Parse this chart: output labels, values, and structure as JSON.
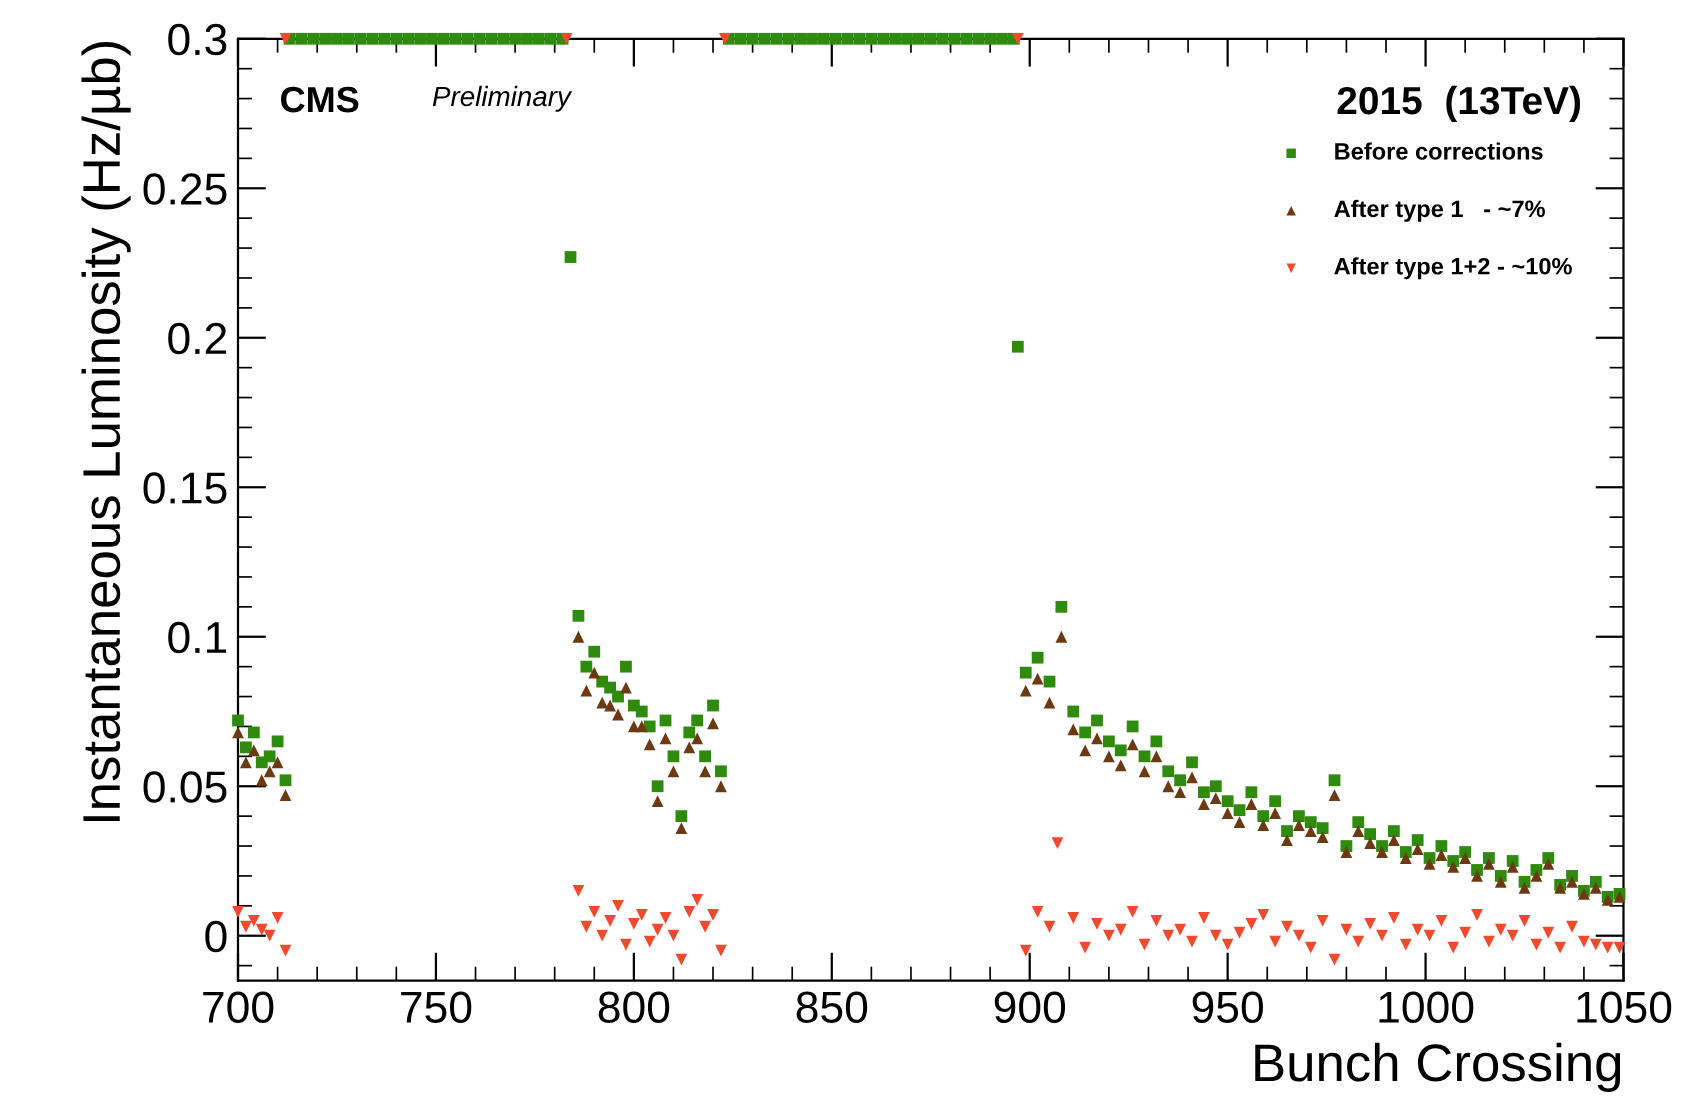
{
  "chart_data": {
    "type": "scatter",
    "xlabel": "Bunch Crossing",
    "ylabel": "Instantaneous Luminosity (Hz/µb)",
    "xlim": [
      700,
      1050
    ],
    "ylim": [
      -0.015,
      0.3
    ],
    "xticks": [
      700,
      750,
      800,
      850,
      900,
      950,
      1000,
      1050
    ],
    "yticks": [
      0,
      0.05,
      0.1,
      0.15,
      0.2,
      0.25,
      0.3
    ],
    "grid": false,
    "legend": "top right",
    "annotations": [
      "CMS",
      "Preliminary",
      "2015  (13TeV)"
    ],
    "series": [
      {
        "name": "Before corrections",
        "color": "#2e8b0e",
        "marker": "square",
        "x": [
          700,
          702,
          704,
          706,
          708,
          710,
          712,
          784,
          786,
          788,
          790,
          792,
          794,
          796,
          798,
          800,
          802,
          804,
          806,
          808,
          810,
          812,
          814,
          816,
          818,
          820,
          822,
          897,
          899,
          902,
          905,
          908,
          911,
          914,
          917,
          920,
          923,
          926,
          929,
          932,
          935,
          938,
          941,
          944,
          947,
          950,
          953,
          956,
          959,
          962,
          965,
          968,
          971,
          974,
          977,
          980,
          983,
          986,
          989,
          992,
          995,
          998,
          1001,
          1004,
          1007,
          1010,
          1013,
          1016,
          1019,
          1022,
          1025,
          1028,
          1031,
          1034,
          1037,
          1040,
          1043,
          1046,
          1049
        ],
        "values": [
          0.072,
          0.063,
          0.068,
          0.058,
          0.06,
          0.065,
          0.052,
          0.227,
          0.107,
          0.09,
          0.095,
          0.085,
          0.083,
          0.08,
          0.09,
          0.077,
          0.075,
          0.07,
          0.05,
          0.072,
          0.06,
          0.04,
          0.068,
          0.072,
          0.06,
          0.077,
          0.055,
          0.197,
          0.088,
          0.093,
          0.085,
          0.11,
          0.075,
          0.068,
          0.072,
          0.065,
          0.062,
          0.07,
          0.06,
          0.065,
          0.055,
          0.052,
          0.058,
          0.048,
          0.05,
          0.045,
          0.042,
          0.048,
          0.04,
          0.045,
          0.035,
          0.04,
          0.038,
          0.036,
          0.052,
          0.03,
          0.038,
          0.034,
          0.03,
          0.035,
          0.028,
          0.032,
          0.026,
          0.03,
          0.025,
          0.028,
          0.022,
          0.026,
          0.02,
          0.025,
          0.018,
          0.022,
          0.026,
          0.017,
          0.02,
          0.015,
          0.018,
          0.013,
          0.014
        ]
      },
      {
        "name": "After type 1   - ~7%",
        "color": "#6b3a12",
        "marker": "triangle",
        "x": [
          700,
          702,
          704,
          706,
          708,
          710,
          712,
          786,
          788,
          790,
          792,
          794,
          796,
          798,
          800,
          802,
          804,
          806,
          808,
          810,
          812,
          814,
          816,
          818,
          820,
          822,
          899,
          902,
          905,
          908,
          911,
          914,
          917,
          920,
          923,
          926,
          929,
          932,
          935,
          938,
          941,
          944,
          947,
          950,
          953,
          956,
          959,
          962,
          965,
          968,
          971,
          974,
          977,
          980,
          983,
          986,
          989,
          992,
          995,
          998,
          1001,
          1004,
          1007,
          1010,
          1013,
          1016,
          1019,
          1022,
          1025,
          1028,
          1031,
          1034,
          1037,
          1040,
          1043,
          1046,
          1049
        ],
        "values": [
          0.068,
          0.058,
          0.062,
          0.052,
          0.055,
          0.058,
          0.047,
          0.1,
          0.082,
          0.088,
          0.078,
          0.077,
          0.074,
          0.083,
          0.07,
          0.07,
          0.064,
          0.045,
          0.066,
          0.055,
          0.036,
          0.063,
          0.066,
          0.055,
          0.071,
          0.05,
          0.082,
          0.086,
          0.078,
          0.1,
          0.069,
          0.062,
          0.066,
          0.06,
          0.057,
          0.064,
          0.055,
          0.06,
          0.05,
          0.048,
          0.053,
          0.044,
          0.046,
          0.041,
          0.038,
          0.044,
          0.037,
          0.041,
          0.032,
          0.037,
          0.035,
          0.033,
          0.047,
          0.028,
          0.035,
          0.031,
          0.028,
          0.032,
          0.026,
          0.029,
          0.024,
          0.027,
          0.023,
          0.026,
          0.02,
          0.024,
          0.018,
          0.023,
          0.016,
          0.02,
          0.024,
          0.016,
          0.018,
          0.014,
          0.016,
          0.012,
          0.013
        ]
      },
      {
        "name": "After type 1+2 - ~10%",
        "color": "#f04a2e",
        "marker": "triangle_down",
        "x": [
          700,
          702,
          704,
          706,
          708,
          710,
          712,
          786,
          788,
          790,
          792,
          794,
          796,
          798,
          800,
          802,
          804,
          806,
          808,
          810,
          812,
          814,
          816,
          818,
          820,
          822,
          899,
          902,
          905,
          907,
          911,
          914,
          917,
          920,
          923,
          926,
          929,
          932,
          935,
          938,
          941,
          944,
          947,
          950,
          953,
          956,
          959,
          962,
          965,
          968,
          971,
          974,
          977,
          980,
          983,
          986,
          989,
          992,
          995,
          998,
          1001,
          1004,
          1007,
          1010,
          1013,
          1016,
          1019,
          1022,
          1025,
          1028,
          1031,
          1034,
          1037,
          1040,
          1043,
          1046,
          1049
        ],
        "values": [
          0.008,
          0.003,
          0.005,
          0.002,
          0.0,
          0.006,
          -0.005,
          0.015,
          0.003,
          0.008,
          0.0,
          0.005,
          0.01,
          -0.003,
          0.004,
          0.007,
          -0.002,
          0.002,
          0.006,
          0.0,
          -0.008,
          0.008,
          0.012,
          0.003,
          0.007,
          -0.005,
          -0.005,
          0.008,
          0.003,
          0.031,
          0.006,
          -0.004,
          0.004,
          0.0,
          0.002,
          0.008,
          -0.003,
          0.005,
          0.0,
          0.002,
          -0.002,
          0.006,
          0.0,
          -0.003,
          0.001,
          0.004,
          0.007,
          -0.002,
          0.003,
          0.0,
          -0.004,
          0.005,
          -0.008,
          0.002,
          -0.002,
          0.004,
          0.0,
          0.006,
          -0.003,
          0.002,
          0.0,
          0.005,
          -0.004,
          0.001,
          0.007,
          -0.002,
          0.002,
          0.0,
          0.005,
          -0.003,
          0.001,
          -0.004,
          0.003,
          -0.002,
          -0.003,
          -0.004,
          -0.004
        ]
      },
      {
        "color": "#2e8b0e",
        "marker": "square",
        "x": [
          713,
          716,
          719,
          722,
          725,
          728,
          731,
          734,
          737,
          740,
          743,
          746,
          749,
          752,
          755,
          758,
          761,
          764,
          767,
          770,
          773,
          776,
          779,
          782,
          824,
          827,
          830,
          833,
          836,
          839,
          842,
          845,
          848,
          851,
          854,
          857,
          860,
          863,
          866,
          869,
          872,
          875,
          878,
          881,
          884,
          887,
          890,
          893,
          896
        ],
        "values": [
          0.3,
          0.3,
          0.3,
          0.3,
          0.3,
          0.3,
          0.3,
          0.3,
          0.3,
          0.3,
          0.3,
          0.3,
          0.3,
          0.3,
          0.3,
          0.3,
          0.3,
          0.3,
          0.3,
          0.3,
          0.3,
          0.3,
          0.3,
          0.3,
          0.3,
          0.3,
          0.3,
          0.3,
          0.3,
          0.3,
          0.3,
          0.3,
          0.3,
          0.3,
          0.3,
          0.3,
          0.3,
          0.3,
          0.3,
          0.3,
          0.3,
          0.3,
          0.3,
          0.3,
          0.3,
          0.3,
          0.3,
          0.3,
          0.3
        ]
      },
      {
        "color": "#f04a2e",
        "marker": "triangle_down",
        "x": [
          712,
          783,
          823,
          897
        ],
        "values": [
          0.3,
          0.3,
          0.3,
          0.3
        ]
      }
    ]
  }
}
